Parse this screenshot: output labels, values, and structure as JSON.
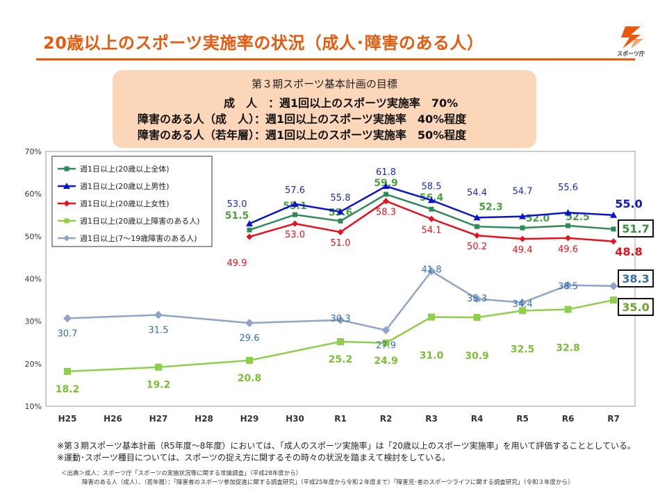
{
  "title": "20歳以上のスポーツ実施率の状況（成人･障害のある人）",
  "logo": {
    "text": "スポーツ庁",
    "icon": "sports-agency-logo-icon"
  },
  "goal": {
    "heading": "第３期スポーツ基本計画の目標",
    "lines": [
      "成　人　：週1回以上のスポーツ実施率　70%",
      "障害のある人（成　人）：週1回以上のスポーツ実施率　40%程度",
      "障害のある人（若年層）：週1回以上のスポーツ実施率　50%程度"
    ]
  },
  "chart_data": {
    "type": "line",
    "categories": [
      "H25",
      "H26",
      "H27",
      "H28",
      "H29",
      "H30",
      "R1",
      "R2",
      "R3",
      "R4",
      "R5",
      "R6",
      "R7"
    ],
    "ylim": [
      10,
      70
    ],
    "yticks": [
      "10%",
      "20%",
      "30%",
      "40%",
      "50%",
      "60%",
      "70%"
    ],
    "grid": false,
    "legend": "top-left",
    "series": [
      {
        "name": "週1日以上(20歳以上全体)",
        "color": "#2e8b57",
        "marker": "square",
        "values": [
          null,
          null,
          null,
          null,
          51.5,
          55.1,
          53.6,
          59.9,
          56.4,
          52.3,
          52.0,
          52.5,
          51.7
        ],
        "labels": [
          "",
          "",
          "",
          "",
          "51.5",
          "55.1",
          "53.6",
          "59.9",
          "56.4",
          "52.3",
          "52.0",
          "52.5",
          "51.7"
        ]
      },
      {
        "name": "週1日以上(20歳以上男性)",
        "color": "#0a14d0",
        "marker": "triangle",
        "values": [
          null,
          null,
          null,
          null,
          53.0,
          57.6,
          55.8,
          61.8,
          58.5,
          54.4,
          54.7,
          55.6,
          55.0
        ],
        "labels": [
          "",
          "",
          "",
          "",
          "53.0",
          "57.6",
          "55.8",
          "61.8",
          "58.5",
          "54.4",
          "54.7",
          "55.6",
          "55.0"
        ]
      },
      {
        "name": "週1日以上(20歳以上女性)",
        "color": "#e8101a",
        "marker": "diamond",
        "values": [
          null,
          null,
          null,
          null,
          49.9,
          53.0,
          51.0,
          58.3,
          54.1,
          50.2,
          49.4,
          49.6,
          48.8
        ],
        "labels": [
          "",
          "",
          "",
          "",
          "49.9",
          "53.0",
          "51.0",
          "58.3",
          "54.1",
          "50.2",
          "49.4",
          "49.6",
          "48.8"
        ]
      },
      {
        "name": "週1日以上(20歳以上障害のある人)",
        "color": "#8ecf4a",
        "marker": "square",
        "values": [
          18.2,
          null,
          19.2,
          null,
          20.8,
          null,
          25.2,
          24.9,
          31.0,
          30.9,
          32.5,
          32.8,
          35.0
        ],
        "labels": [
          "18.2",
          "",
          "19.2",
          "",
          "20.8",
          "",
          "25.2",
          "24.9",
          "31.0",
          "30.9",
          "32.5",
          "32.8",
          "35.0"
        ]
      },
      {
        "name": "週1日以上(7～19歳障害のある人)",
        "color": "#8ea4c8",
        "marker": "diamond",
        "values": [
          30.7,
          null,
          31.5,
          null,
          29.6,
          null,
          30.3,
          27.9,
          41.8,
          35.3,
          34.4,
          38.5,
          38.3
        ],
        "labels": [
          "30.7",
          "",
          "31.5",
          "",
          "29.6",
          "",
          "30.3",
          "27.9",
          "41.8",
          "35.3",
          "34.4",
          "38.5",
          "38.3"
        ]
      }
    ]
  },
  "notes": [
    "※第３期スポーツ基本計画（R5年度～8年度）においては、「成人のスポーツ実施率」は「20歳以上のスポーツ実施率」を用いて評価することとしている。",
    "※運動･スポーツ種目については、スポーツの捉え方に関するその時々の状況を踏まえて検討をしている。"
  ],
  "source": [
    "＜出典＞成人：スポーツ庁「スポーツの実施状況等に関する世論調査」（平成28年度から）",
    "障害のある人（成人）、（若年層）：「障害者のスポーツ参加促進に関する調査研究」（平成25年度から令和２年度まで）「障害児･者のスポーツライフに関する調査研究」（令和３年度から）"
  ]
}
